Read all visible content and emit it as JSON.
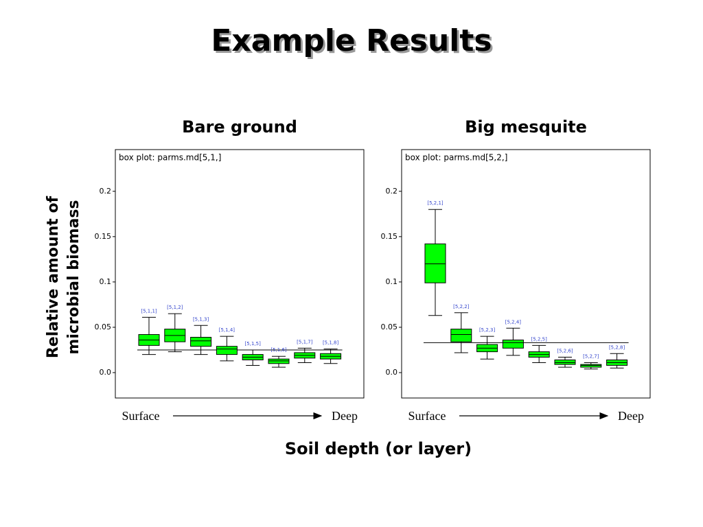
{
  "title": "Example Results",
  "y_label": "Relative amount of microbial biomass",
  "x_label": "Soil depth (or layer)",
  "chart_data": [
    {
      "type": "box",
      "panel": "Bare ground",
      "title": "box plot: parms.md[5,1,]",
      "x_start": "Surface",
      "x_end": "Deep",
      "categories": [
        "[5,1,1]",
        "[5,1,2]",
        "[5,1,3]",
        "[5,1,4]",
        "[5,1,5]",
        "[5,1,6]",
        "[5,1,7]",
        "[5,1,8]"
      ],
      "whishi": [
        0.061,
        0.065,
        0.052,
        0.04,
        0.025,
        0.018,
        0.027,
        0.026
      ],
      "q3": [
        0.042,
        0.048,
        0.039,
        0.029,
        0.02,
        0.015,
        0.022,
        0.021
      ],
      "median": [
        0.036,
        0.041,
        0.035,
        0.026,
        0.017,
        0.013,
        0.019,
        0.018
      ],
      "q1": [
        0.03,
        0.034,
        0.029,
        0.02,
        0.014,
        0.01,
        0.016,
        0.015
      ],
      "whislo": [
        0.02,
        0.023,
        0.02,
        0.013,
        0.008,
        0.006,
        0.011,
        0.01
      ],
      "reference_line": 0.025,
      "color": "#00ff00",
      "label_color": "#3344cc",
      "ylim": [
        -0.028,
        0.246
      ],
      "yticks": [
        {
          "value": 0,
          "label": "0.0"
        },
        0.05,
        0.1,
        0.15,
        0.2
      ]
    },
    {
      "type": "box",
      "panel": "Big mesquite",
      "title": "box plot: parms.md[5,2,]",
      "x_start": "Surface",
      "x_end": "Deep",
      "categories": [
        "[5,2,1]",
        "[5,2,2]",
        "[5,2,3]",
        "[5,2,4]",
        "[5,2,5]",
        "[5,2,6]",
        "[5,2,7]",
        "[5,2,8]"
      ],
      "whishi": [
        0.18,
        0.066,
        0.04,
        0.049,
        0.03,
        0.017,
        0.011,
        0.021
      ],
      "q3": [
        0.142,
        0.048,
        0.031,
        0.036,
        0.023,
        0.014,
        0.009,
        0.014
      ],
      "median": [
        0.12,
        0.042,
        0.027,
        0.033,
        0.02,
        0.011,
        0.008,
        0.011
      ],
      "q1": [
        0.099,
        0.034,
        0.023,
        0.027,
        0.017,
        0.009,
        0.006,
        0.008
      ],
      "whislo": [
        0.063,
        0.022,
        0.015,
        0.019,
        0.011,
        0.006,
        0.004,
        0.005
      ],
      "reference_line": 0.033,
      "color": "#00ff00",
      "label_color": "#3344cc",
      "ylim": [
        -0.028,
        0.246
      ],
      "yticks": [
        {
          "value": 0,
          "label": "0.0"
        },
        0.05,
        0.1,
        0.15,
        0.2
      ]
    }
  ]
}
